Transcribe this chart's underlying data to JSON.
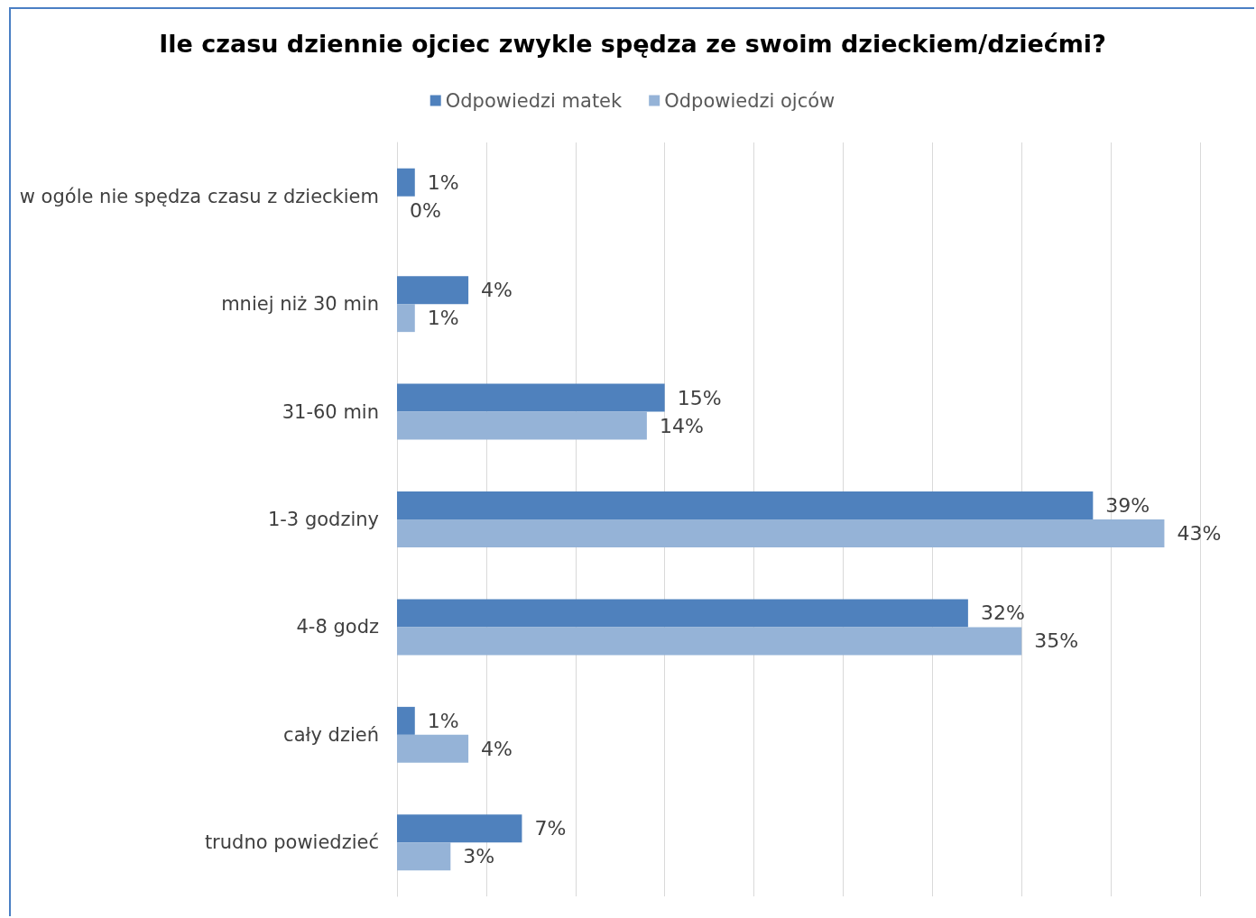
{
  "chart_data": {
    "type": "bar",
    "orientation": "horizontal",
    "title": "Ile czasu dziennie ojciec zwykle spędza ze swoim dzieckiem/dziećmi?",
    "categories": [
      "w ogóle nie spędza czasu z dzieckiem",
      "mniej niż 30 min",
      "31-60 min",
      "1-3 godziny",
      "4-8 godz",
      "cały dzień",
      "trudno powiedzieć"
    ],
    "series": [
      {
        "name": "Odpowiedzi matek",
        "color": "#4f81bd",
        "values": [
          1,
          4,
          15,
          39,
          32,
          1,
          7
        ],
        "value_labels": [
          "1%",
          "4%",
          "15%",
          "39%",
          "32%",
          "1%",
          "7%"
        ]
      },
      {
        "name": "Odpowiedzi ojców",
        "color": "#95b3d7",
        "values": [
          0,
          1,
          14,
          43,
          35,
          4,
          3
        ],
        "value_labels": [
          "0%",
          "1%",
          "14%",
          "43%",
          "35%",
          "4%",
          "3%"
        ]
      }
    ],
    "xlim": [
      0,
      45
    ],
    "xticks": [
      0,
      5,
      10,
      15,
      20,
      25,
      30,
      35,
      40,
      45
    ],
    "grid": "x",
    "legend": "top",
    "tick_labels": "y"
  }
}
